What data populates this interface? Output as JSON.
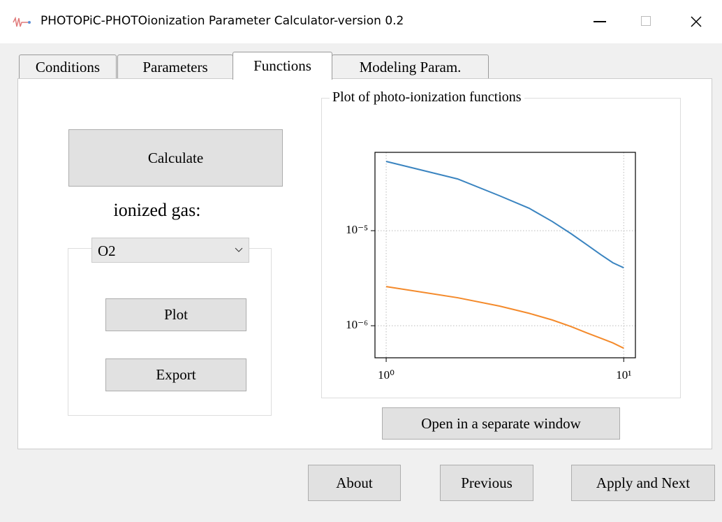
{
  "window": {
    "title": "PHOTOPiC-PHOTOionization Parameter Calculator-version 0.2"
  },
  "tabs": {
    "items": [
      "Conditions",
      "Parameters",
      "Functions",
      "Modeling Param."
    ],
    "active": 2
  },
  "left_panel": {
    "calculate_button": "Calculate",
    "gas_label": "ionized gas:",
    "gas_select": "O2",
    "plot_button": "Plot",
    "export_button": "Export"
  },
  "plot_group": {
    "title": "Plot of photo-ionization functions",
    "open_button": "Open in a separate window"
  },
  "footer": {
    "about": "About",
    "previous": "Previous",
    "apply_next": "Apply and Next"
  },
  "chart_data": {
    "type": "line",
    "x": [
      1,
      2,
      3,
      4,
      5,
      6,
      7,
      8,
      9,
      10
    ],
    "series": [
      {
        "color": "#3a84c0",
        "values": [
          5.35e-05,
          3.5e-05,
          2.33e-05,
          1.72e-05,
          1.25e-05,
          9.3e-06,
          7.1e-06,
          5.6e-06,
          4.6e-06,
          4.07e-06
        ]
      },
      {
        "color": "#f48a2b",
        "values": [
          2.58e-06,
          1.97e-06,
          1.61e-06,
          1.35e-06,
          1.15e-06,
          9.8e-07,
          8.4e-07,
          7.4e-07,
          6.6e-07,
          5.8e-07
        ]
      }
    ],
    "xlim": [
      0.897,
      11.2
    ],
    "ylim": [
      4.6e-07,
      6.67e-05
    ],
    "xticks": [
      {
        "value": 1,
        "label": "10⁰"
      },
      {
        "value": 10,
        "label": "10¹"
      }
    ],
    "yticks": [
      {
        "value": 1e-06,
        "label": "10⁻⁶"
      },
      {
        "value": 1e-05,
        "label": "10⁻⁵"
      }
    ],
    "xscale": "log",
    "yscale": "log",
    "grid": true
  }
}
